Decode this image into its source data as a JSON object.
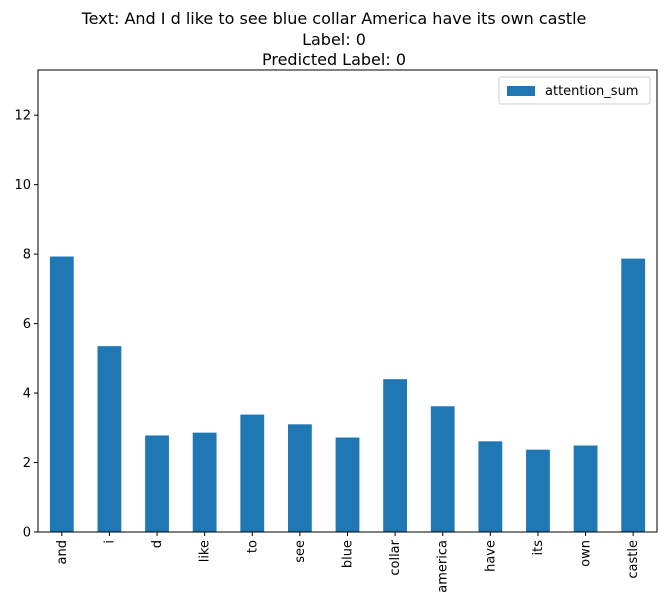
{
  "chart_data": {
    "type": "bar",
    "title_lines": [
      "Text: And I d like to see blue collar America have its own castle",
      "Label: 0",
      "Predicted Label: 0"
    ],
    "categories": [
      "and",
      "i",
      "d",
      "like",
      "to",
      "see",
      "blue",
      "collar",
      "america",
      "have",
      "its",
      "own",
      "castle"
    ],
    "series": [
      {
        "name": "attention_sum",
        "color": "#1f77b4",
        "values": [
          7.93,
          5.35,
          2.78,
          2.86,
          3.38,
          3.1,
          2.72,
          4.4,
          3.62,
          2.61,
          2.37,
          2.49,
          7.87
        ]
      }
    ],
    "yticks": [
      0,
      2,
      4,
      6,
      8,
      10,
      12
    ],
    "ylim": [
      0,
      13.3
    ],
    "xlabel": "",
    "ylabel": "",
    "legend_position": "top-right",
    "grid": false
  }
}
